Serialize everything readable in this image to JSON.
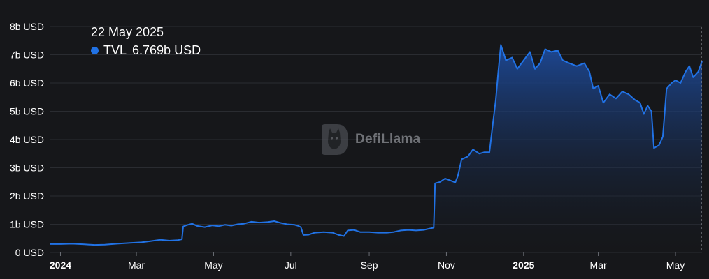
{
  "chart_data": {
    "type": "area",
    "y_ticks": [
      "0 USD",
      "1b USD",
      "2b USD",
      "3b USD",
      "4b USD",
      "5b USD",
      "6b USD",
      "7b USD",
      "8b USD"
    ],
    "ylim": [
      0,
      8
    ],
    "y_unit": "b USD",
    "x_ticks": [
      {
        "label": "2024",
        "date": "2024-01-01",
        "bold": true
      },
      {
        "label": "Mar",
        "date": "2024-03-01",
        "bold": false
      },
      {
        "label": "May",
        "date": "2024-05-01",
        "bold": false
      },
      {
        "label": "Jul",
        "date": "2024-07-01",
        "bold": false
      },
      {
        "label": "Sep",
        "date": "2024-09-01",
        "bold": false
      },
      {
        "label": "Nov",
        "date": "2024-11-01",
        "bold": false
      },
      {
        "label": "2025",
        "date": "2025-01-01",
        "bold": true
      },
      {
        "label": "Mar",
        "date": "2025-03-01",
        "bold": false
      },
      {
        "label": "May",
        "date": "2025-05-01",
        "bold": false
      }
    ],
    "xlim": [
      "2023-12-24",
      "2025-05-22"
    ],
    "series": [
      {
        "name": "TVL",
        "color": "#2172e5",
        "points": [
          [
            "2023-12-24",
            0.3
          ],
          [
            "2024-01-01",
            0.3
          ],
          [
            "2024-01-10",
            0.31
          ],
          [
            "2024-01-20",
            0.29
          ],
          [
            "2024-01-28",
            0.27
          ],
          [
            "2024-02-05",
            0.28
          ],
          [
            "2024-02-15",
            0.31
          ],
          [
            "2024-02-25",
            0.34
          ],
          [
            "2024-03-05",
            0.36
          ],
          [
            "2024-03-12",
            0.4
          ],
          [
            "2024-03-20",
            0.45
          ],
          [
            "2024-03-27",
            0.42
          ],
          [
            "2024-04-03",
            0.44
          ],
          [
            "2024-04-06",
            0.47
          ],
          [
            "2024-04-07",
            0.92
          ],
          [
            "2024-04-10",
            0.97
          ],
          [
            "2024-04-14",
            1.02
          ],
          [
            "2024-04-18",
            0.94
          ],
          [
            "2024-04-24",
            0.9
          ],
          [
            "2024-04-30",
            0.96
          ],
          [
            "2024-05-05",
            0.93
          ],
          [
            "2024-05-10",
            0.98
          ],
          [
            "2024-05-15",
            0.95
          ],
          [
            "2024-05-20",
            1.0
          ],
          [
            "2024-05-25",
            1.02
          ],
          [
            "2024-05-31",
            1.09
          ],
          [
            "2024-06-06",
            1.06
          ],
          [
            "2024-06-13",
            1.08
          ],
          [
            "2024-06-18",
            1.11
          ],
          [
            "2024-06-22",
            1.06
          ],
          [
            "2024-06-28",
            1.0
          ],
          [
            "2024-07-04",
            0.98
          ],
          [
            "2024-07-07",
            0.94
          ],
          [
            "2024-07-09",
            0.9
          ],
          [
            "2024-07-11",
            0.62
          ],
          [
            "2024-07-15",
            0.63
          ],
          [
            "2024-07-20",
            0.7
          ],
          [
            "2024-07-27",
            0.72
          ],
          [
            "2024-08-03",
            0.7
          ],
          [
            "2024-08-08",
            0.62
          ],
          [
            "2024-08-12",
            0.58
          ],
          [
            "2024-08-15",
            0.78
          ],
          [
            "2024-08-20",
            0.8
          ],
          [
            "2024-08-25",
            0.72
          ],
          [
            "2024-09-01",
            0.72
          ],
          [
            "2024-09-08",
            0.7
          ],
          [
            "2024-09-15",
            0.7
          ],
          [
            "2024-09-20",
            0.72
          ],
          [
            "2024-09-26",
            0.78
          ],
          [
            "2024-10-02",
            0.8
          ],
          [
            "2024-10-08",
            0.78
          ],
          [
            "2024-10-14",
            0.8
          ],
          [
            "2024-10-18",
            0.84
          ],
          [
            "2024-10-22",
            0.88
          ],
          [
            "2024-10-23",
            2.45
          ],
          [
            "2024-10-27",
            2.5
          ],
          [
            "2024-10-31",
            2.62
          ],
          [
            "2024-11-04",
            2.55
          ],
          [
            "2024-11-08",
            2.48
          ],
          [
            "2024-11-10",
            2.7
          ],
          [
            "2024-11-13",
            3.3
          ],
          [
            "2024-11-18",
            3.4
          ],
          [
            "2024-11-22",
            3.65
          ],
          [
            "2024-11-27",
            3.5
          ],
          [
            "2024-12-01",
            3.55
          ],
          [
            "2024-12-05",
            3.55
          ],
          [
            "2024-12-07",
            4.3
          ],
          [
            "2024-12-10",
            5.4
          ],
          [
            "2024-12-12",
            6.4
          ],
          [
            "2024-12-14",
            7.35
          ],
          [
            "2024-12-18",
            6.8
          ],
          [
            "2024-12-23",
            6.9
          ],
          [
            "2024-12-27",
            6.5
          ],
          [
            "2025-01-01",
            6.8
          ],
          [
            "2025-01-06",
            7.1
          ],
          [
            "2025-01-10",
            6.5
          ],
          [
            "2025-01-14",
            6.7
          ],
          [
            "2025-01-18",
            7.2
          ],
          [
            "2025-01-23",
            7.1
          ],
          [
            "2025-01-28",
            7.15
          ],
          [
            "2025-02-01",
            6.8
          ],
          [
            "2025-02-06",
            6.7
          ],
          [
            "2025-02-12",
            6.6
          ],
          [
            "2025-02-18",
            6.7
          ],
          [
            "2025-02-22",
            6.4
          ],
          [
            "2025-02-25",
            5.8
          ],
          [
            "2025-03-01",
            5.9
          ],
          [
            "2025-03-05",
            5.3
          ],
          [
            "2025-03-10",
            5.6
          ],
          [
            "2025-03-15",
            5.45
          ],
          [
            "2025-03-20",
            5.7
          ],
          [
            "2025-03-25",
            5.6
          ],
          [
            "2025-03-30",
            5.4
          ],
          [
            "2025-04-03",
            5.3
          ],
          [
            "2025-04-06",
            4.9
          ],
          [
            "2025-04-09",
            5.2
          ],
          [
            "2025-04-12",
            5.0
          ],
          [
            "2025-04-14",
            3.7
          ],
          [
            "2025-04-18",
            3.8
          ],
          [
            "2025-04-21",
            4.1
          ],
          [
            "2025-04-24",
            5.8
          ],
          [
            "2025-04-28",
            6.0
          ],
          [
            "2025-05-01",
            6.1
          ],
          [
            "2025-05-05",
            6.0
          ],
          [
            "2025-05-09",
            6.4
          ],
          [
            "2025-05-12",
            6.6
          ],
          [
            "2025-05-15",
            6.2
          ],
          [
            "2025-05-19",
            6.4
          ],
          [
            "2025-05-22",
            6.769
          ]
        ]
      }
    ]
  },
  "tooltip": {
    "date": "22 May 2025",
    "series_name": "TVL",
    "value": "6.769b USD",
    "dot_color": "#2172e5"
  },
  "watermark": {
    "text": "DefiLlama"
  },
  "colors": {
    "background": "#16171a",
    "gridline": "#2a2c31",
    "line": "#2172e5",
    "fill_top": "#1d4a9a",
    "crosshair": "#9a9da3"
  }
}
